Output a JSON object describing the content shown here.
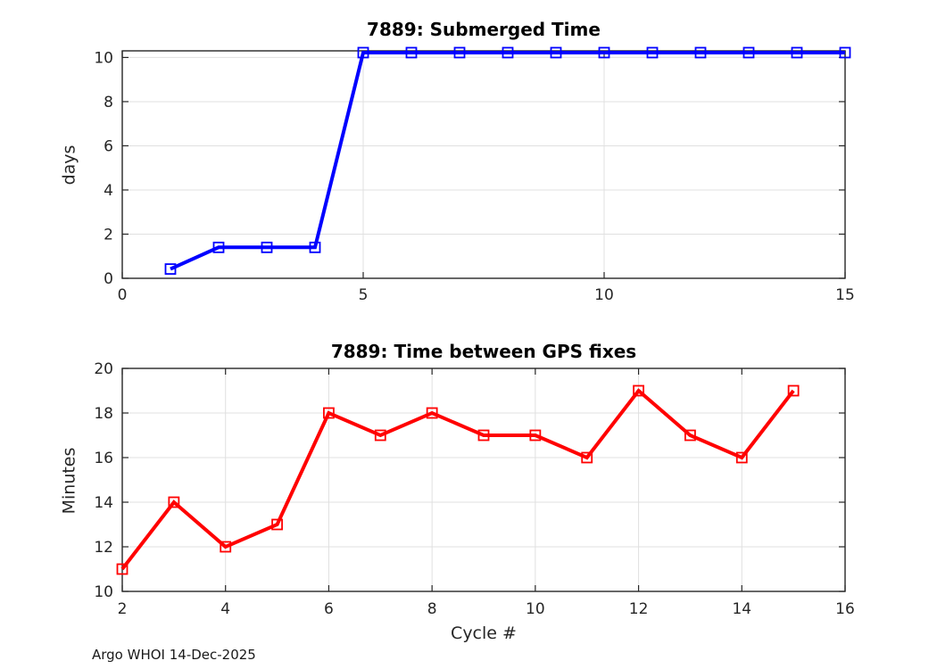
{
  "figure": {
    "footer": "Argo WHOI 14-Dec-2025"
  },
  "chart_data": [
    {
      "type": "line",
      "title": "7889: Submerged Time",
      "xlabel": "",
      "ylabel": "days",
      "x": [
        1,
        2,
        3,
        4,
        5,
        6,
        7,
        8,
        9,
        10,
        11,
        12,
        13,
        14,
        15
      ],
      "y": [
        0.42,
        1.4,
        1.4,
        1.4,
        10.22,
        10.22,
        10.22,
        10.22,
        10.22,
        10.22,
        10.22,
        10.22,
        10.22,
        10.22,
        10.22
      ],
      "xlim": [
        0,
        15
      ],
      "ylim": [
        0,
        10.3
      ],
      "xticks": [
        0,
        5,
        10,
        15
      ],
      "yticks": [
        0,
        2,
        4,
        6,
        8,
        10
      ],
      "line_color": "#0000FF",
      "marker": "open-square",
      "grid": true,
      "legend": ""
    },
    {
      "type": "line",
      "title": "7889: Time between GPS fixes",
      "xlabel": "Cycle #",
      "ylabel": "Minutes",
      "x": [
        2,
        3,
        4,
        5,
        6,
        7,
        8,
        9,
        10,
        11,
        12,
        13,
        14,
        15
      ],
      "y": [
        11,
        14,
        12,
        13,
        18,
        17,
        18,
        17,
        17,
        16,
        19,
        17,
        16,
        19
      ],
      "xlim": [
        2,
        16
      ],
      "ylim": [
        10,
        20
      ],
      "xticks": [
        2,
        4,
        6,
        8,
        10,
        12,
        14,
        16
      ],
      "yticks": [
        10,
        12,
        14,
        16,
        18,
        20
      ],
      "line_color": "#FF0000",
      "marker": "open-square",
      "grid": true,
      "legend": ""
    }
  ],
  "styles": {
    "background": "#FFFFFF",
    "grid_color": "#E0E0E0",
    "axis_color": "#262626",
    "tick_label_color": "#262626",
    "title_color": "#000000"
  }
}
